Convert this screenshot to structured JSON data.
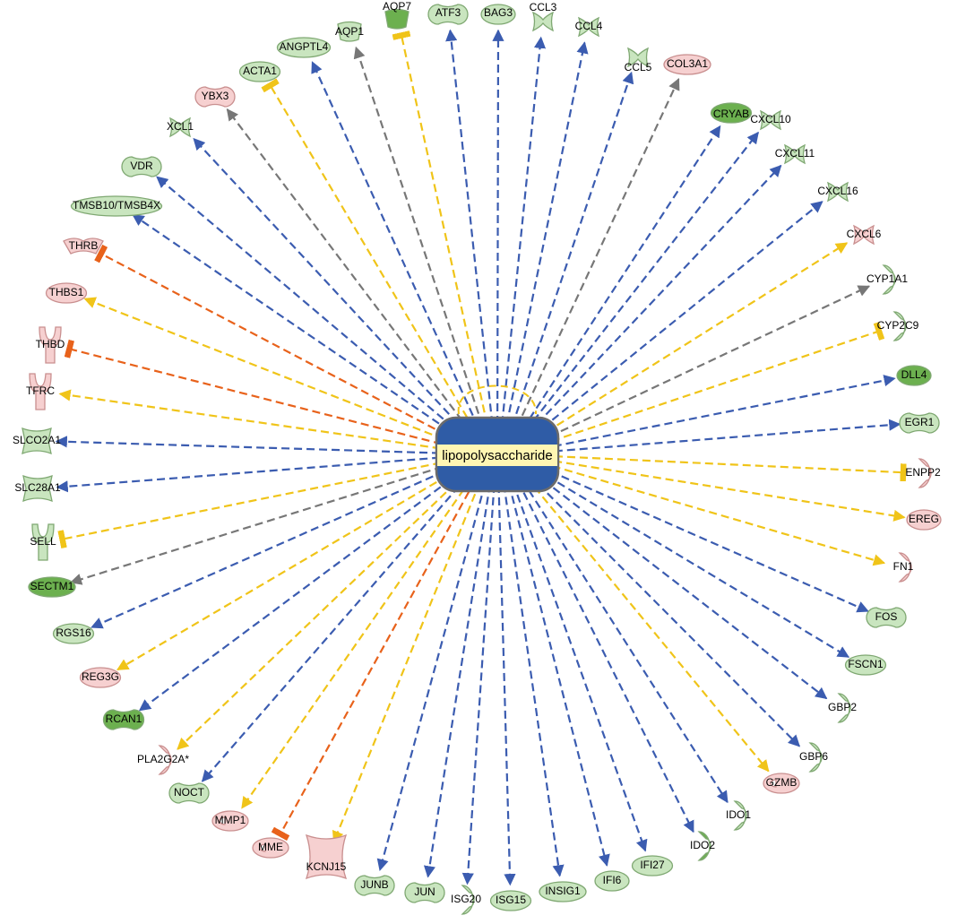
{
  "hub": {
    "name": "lipopolysaccharide",
    "fill": "#2f5ca6",
    "label_bg": "#fff6b3"
  },
  "colors": {
    "activation": "#3b5cb0",
    "inhibition_consistent": "#e8621b",
    "inconsistent": "#f0c419",
    "unpredicted": "#777777",
    "up": "#f6d0d0",
    "down": "#c9e5bf",
    "down_strong": "#6cb04f"
  },
  "legend_note": "",
  "nodes": [
    {
      "name": "AQP7",
      "color": "down_strong",
      "edge": "inconsistent",
      "arrow": "bar",
      "shape": "cup-icon"
    },
    {
      "name": "ATF3",
      "color": "down",
      "edge": "activation",
      "arrow": "arrow",
      "shape": "peanut-icon"
    },
    {
      "name": "BAG3",
      "color": "down",
      "edge": "activation",
      "arrow": "arrow",
      "shape": "circle-icon"
    },
    {
      "name": "CCL3",
      "color": "down",
      "edge": "activation",
      "arrow": "arrow",
      "shape": "cytokine-icon"
    },
    {
      "name": "CCL4",
      "color": "down",
      "edge": "activation",
      "arrow": "arrow",
      "shape": "cytokine-icon"
    },
    {
      "name": "CCL5",
      "color": "down",
      "edge": "activation",
      "arrow": "arrow",
      "shape": "cytokine-icon"
    },
    {
      "name": "COL3A1",
      "color": "up",
      "edge": "unpredicted",
      "arrow": "arrow",
      "shape": "circle-icon"
    },
    {
      "name": "CRYAB",
      "color": "down_strong",
      "edge": "activation",
      "arrow": "arrow",
      "shape": "circle-icon"
    },
    {
      "name": "CXCL10",
      "color": "down",
      "edge": "activation",
      "arrow": "arrow",
      "shape": "cytokine-icon"
    },
    {
      "name": "CXCL11",
      "color": "down",
      "edge": "activation",
      "arrow": "arrow",
      "shape": "cytokine-icon"
    },
    {
      "name": "CXCL16",
      "color": "down",
      "edge": "activation",
      "arrow": "arrow",
      "shape": "cytokine-icon"
    },
    {
      "name": "CXCL6",
      "color": "up",
      "edge": "inconsistent",
      "arrow": "arrow",
      "shape": "cytokine-icon"
    },
    {
      "name": "CYP1A1",
      "color": "down",
      "edge": "unpredicted",
      "arrow": "arrow",
      "shape": "enzyme-icon"
    },
    {
      "name": "CYP2C9",
      "color": "down",
      "edge": "inconsistent",
      "arrow": "bar",
      "shape": "enzyme-icon"
    },
    {
      "name": "DLL4",
      "color": "down_strong",
      "edge": "activation",
      "arrow": "arrow",
      "shape": "circle-icon"
    },
    {
      "name": "EGR1",
      "color": "down",
      "edge": "activation",
      "arrow": "arrow",
      "shape": "peanut-icon"
    },
    {
      "name": "ENPP2",
      "color": "up",
      "edge": "inconsistent",
      "arrow": "bar",
      "shape": "enzyme-icon"
    },
    {
      "name": "EREG",
      "color": "up",
      "edge": "inconsistent",
      "arrow": "arrow",
      "shape": "circle-icon"
    },
    {
      "name": "FN1",
      "color": "up",
      "edge": "inconsistent",
      "arrow": "arrow",
      "shape": "enzyme-icon"
    },
    {
      "name": "FOS",
      "color": "down",
      "edge": "activation",
      "arrow": "arrow",
      "shape": "peanut-icon"
    },
    {
      "name": "FSCN1",
      "color": "down",
      "edge": "activation",
      "arrow": "arrow",
      "shape": "circle-icon"
    },
    {
      "name": "GBP2",
      "color": "down",
      "edge": "activation",
      "arrow": "arrow",
      "shape": "enzyme-icon"
    },
    {
      "name": "GBP6",
      "color": "down",
      "edge": "activation",
      "arrow": "arrow",
      "shape": "enzyme-icon"
    },
    {
      "name": "GZMB",
      "color": "up",
      "edge": "inconsistent",
      "arrow": "arrow",
      "shape": "peptidase-icon"
    },
    {
      "name": "IDO1",
      "color": "down",
      "edge": "activation",
      "arrow": "arrow",
      "shape": "enzyme-icon"
    },
    {
      "name": "IDO2",
      "color": "down_strong",
      "edge": "activation",
      "arrow": "arrow",
      "shape": "enzyme-icon"
    },
    {
      "name": "IFI27",
      "color": "down",
      "edge": "activation",
      "arrow": "arrow",
      "shape": "circle-icon"
    },
    {
      "name": "IFI6",
      "color": "down",
      "edge": "activation",
      "arrow": "arrow",
      "shape": "circle-icon"
    },
    {
      "name": "INSIG1",
      "color": "down",
      "edge": "activation",
      "arrow": "arrow",
      "shape": "circle-icon"
    },
    {
      "name": "ISG15",
      "color": "down",
      "edge": "activation",
      "arrow": "arrow",
      "shape": "circle-icon"
    },
    {
      "name": "ISG20",
      "color": "down",
      "edge": "activation",
      "arrow": "arrow",
      "shape": "enzyme-icon"
    },
    {
      "name": "JUN",
      "color": "down",
      "edge": "activation",
      "arrow": "arrow",
      "shape": "peanut-icon"
    },
    {
      "name": "JUNB",
      "color": "down",
      "edge": "activation",
      "arrow": "arrow",
      "shape": "peanut-icon"
    },
    {
      "name": "KCNJ15",
      "color": "up",
      "edge": "inconsistent",
      "arrow": "arrow",
      "shape": "channel-icon"
    },
    {
      "name": "MME",
      "color": "up",
      "edge": "inhibition_consistent",
      "arrow": "bar",
      "shape": "peptidase-icon"
    },
    {
      "name": "MMP1",
      "color": "up",
      "edge": "inconsistent",
      "arrow": "arrow",
      "shape": "peptidase-icon"
    },
    {
      "name": "NOCT",
      "color": "down",
      "edge": "activation",
      "arrow": "arrow",
      "shape": "peanut-icon"
    },
    {
      "name": "PLA2G2A*",
      "color": "up",
      "edge": "inconsistent",
      "arrow": "arrow",
      "shape": "enzyme-icon"
    },
    {
      "name": "RCAN1",
      "color": "down_strong",
      "edge": "activation",
      "arrow": "arrow",
      "shape": "peanut-icon"
    },
    {
      "name": "REG3G",
      "color": "up",
      "edge": "inconsistent",
      "arrow": "arrow",
      "shape": "circle-icon"
    },
    {
      "name": "RGS16",
      "color": "down",
      "edge": "activation",
      "arrow": "arrow",
      "shape": "circle-icon"
    },
    {
      "name": "SECTM1",
      "color": "down_strong",
      "edge": "unpredicted",
      "arrow": "arrow",
      "shape": "circle-icon"
    },
    {
      "name": "SELL",
      "color": "down",
      "edge": "inconsistent",
      "arrow": "bar",
      "shape": "receptor-icon"
    },
    {
      "name": "SLC28A1",
      "color": "down",
      "edge": "activation",
      "arrow": "arrow",
      "shape": "transporter-icon"
    },
    {
      "name": "SLCO2A1",
      "color": "down",
      "edge": "activation",
      "arrow": "arrow",
      "shape": "transporter-icon"
    },
    {
      "name": "TFRC",
      "color": "up",
      "edge": "inconsistent",
      "arrow": "arrow",
      "shape": "receptor-icon"
    },
    {
      "name": "THBD",
      "color": "up",
      "edge": "inhibition_consistent",
      "arrow": "bar",
      "shape": "receptor-icon"
    },
    {
      "name": "THBS1",
      "color": "up",
      "edge": "inconsistent",
      "arrow": "arrow",
      "shape": "circle-icon"
    },
    {
      "name": "THRB",
      "color": "up",
      "edge": "inhibition_consistent",
      "arrow": "bar",
      "shape": "nuclear-receptor-icon"
    },
    {
      "name": "TMSB10/TMSB4X",
      "color": "down",
      "edge": "activation",
      "arrow": "arrow",
      "shape": "circle-icon"
    },
    {
      "name": "VDR",
      "color": "down",
      "edge": "activation",
      "arrow": "arrow",
      "shape": "peanut-icon"
    },
    {
      "name": "XCL1",
      "color": "down",
      "edge": "activation",
      "arrow": "arrow",
      "shape": "cytokine-icon"
    },
    {
      "name": "YBX3",
      "color": "up",
      "edge": "unpredicted",
      "arrow": "arrow",
      "shape": "peanut-icon"
    },
    {
      "name": "ACTA1",
      "color": "down",
      "edge": "inconsistent",
      "arrow": "bar",
      "shape": "circle-icon"
    },
    {
      "name": "ANGPTL4",
      "color": "down",
      "edge": "activation",
      "arrow": "arrow",
      "shape": "circle-icon"
    },
    {
      "name": "AQP1",
      "color": "down",
      "edge": "unpredicted",
      "arrow": "arrow",
      "shape": "cup-icon"
    }
  ]
}
